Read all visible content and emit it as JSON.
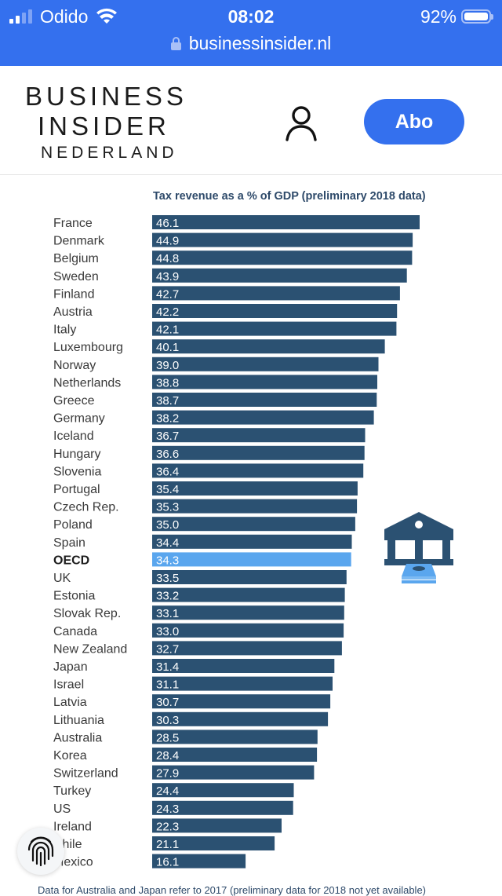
{
  "status_bar": {
    "carrier": "Odido",
    "time": "08:02",
    "battery": "92%",
    "battery_level": 0.92
  },
  "browser": {
    "url": "businessinsider.nl"
  },
  "header": {
    "logo_line1": "BUSINESS",
    "logo_line2": "INSIDER",
    "logo_line3": "NEDERLAND",
    "subscribe_label": "Abo",
    "accent_color": "#3470ee"
  },
  "chart_data": {
    "type": "bar",
    "orientation": "horizontal",
    "title": "Tax revenue as a % of GDP (preliminary 2018 data)",
    "xlabel": "",
    "ylabel": "",
    "xlim": [
      0,
      48
    ],
    "grid": false,
    "legend": "none",
    "bar_color": "#2b5172",
    "highlight_color": "#5aa6ee",
    "highlight_category": "OECD",
    "categories": [
      "France",
      "Denmark",
      "Belgium",
      "Sweden",
      "Finland",
      "Austria",
      "Italy",
      "Luxembourg",
      "Norway",
      "Netherlands",
      "Greece",
      "Germany",
      "Iceland",
      "Hungary",
      "Slovenia",
      "Portugal",
      "Czech Rep.",
      "Poland",
      "Spain",
      "OECD",
      "UK",
      "Estonia",
      "Slovak Rep.",
      "Canada",
      "New Zealand",
      "Japan",
      "Israel",
      "Latvia",
      "Lithuania",
      "Australia",
      "Korea",
      "Switzerland",
      "Turkey",
      "US",
      "Ireland",
      "Chile",
      "Mexico"
    ],
    "values": [
      46.1,
      44.9,
      44.8,
      43.9,
      42.7,
      42.2,
      42.1,
      40.1,
      39.0,
      38.8,
      38.7,
      38.2,
      36.7,
      36.6,
      36.4,
      35.4,
      35.3,
      35.0,
      34.4,
      34.3,
      33.5,
      33.2,
      33.1,
      33.0,
      32.7,
      31.4,
      31.1,
      30.7,
      30.3,
      28.5,
      28.4,
      27.9,
      24.4,
      24.3,
      22.3,
      21.1,
      16.1
    ],
    "labels": [
      "46.1",
      "44.9",
      "44.8",
      "43.9",
      "42.7",
      "42.2",
      "42.1",
      "40.1",
      "39.0",
      "38.8",
      "38.7",
      "38.2",
      "36.7",
      "36.6",
      "36.4",
      "35.4",
      "35.3",
      "35.0",
      "34.4",
      "34.3",
      "33.5",
      "33.2",
      "33.1",
      "33.0",
      "32.7",
      "31.4",
      "31.1",
      "30.7",
      "30.3",
      "28.5",
      "28.4",
      "27.9",
      "24.4",
      "24.3",
      "22.3",
      "21.1",
      "16.1"
    ],
    "footnote": "Data for Australia and Japan refer to 2017 (preliminary data for 2018 not yet available)"
  },
  "icons": {
    "bank": "bank-with-money-icon",
    "fingerprint": "fingerprint-icon"
  }
}
